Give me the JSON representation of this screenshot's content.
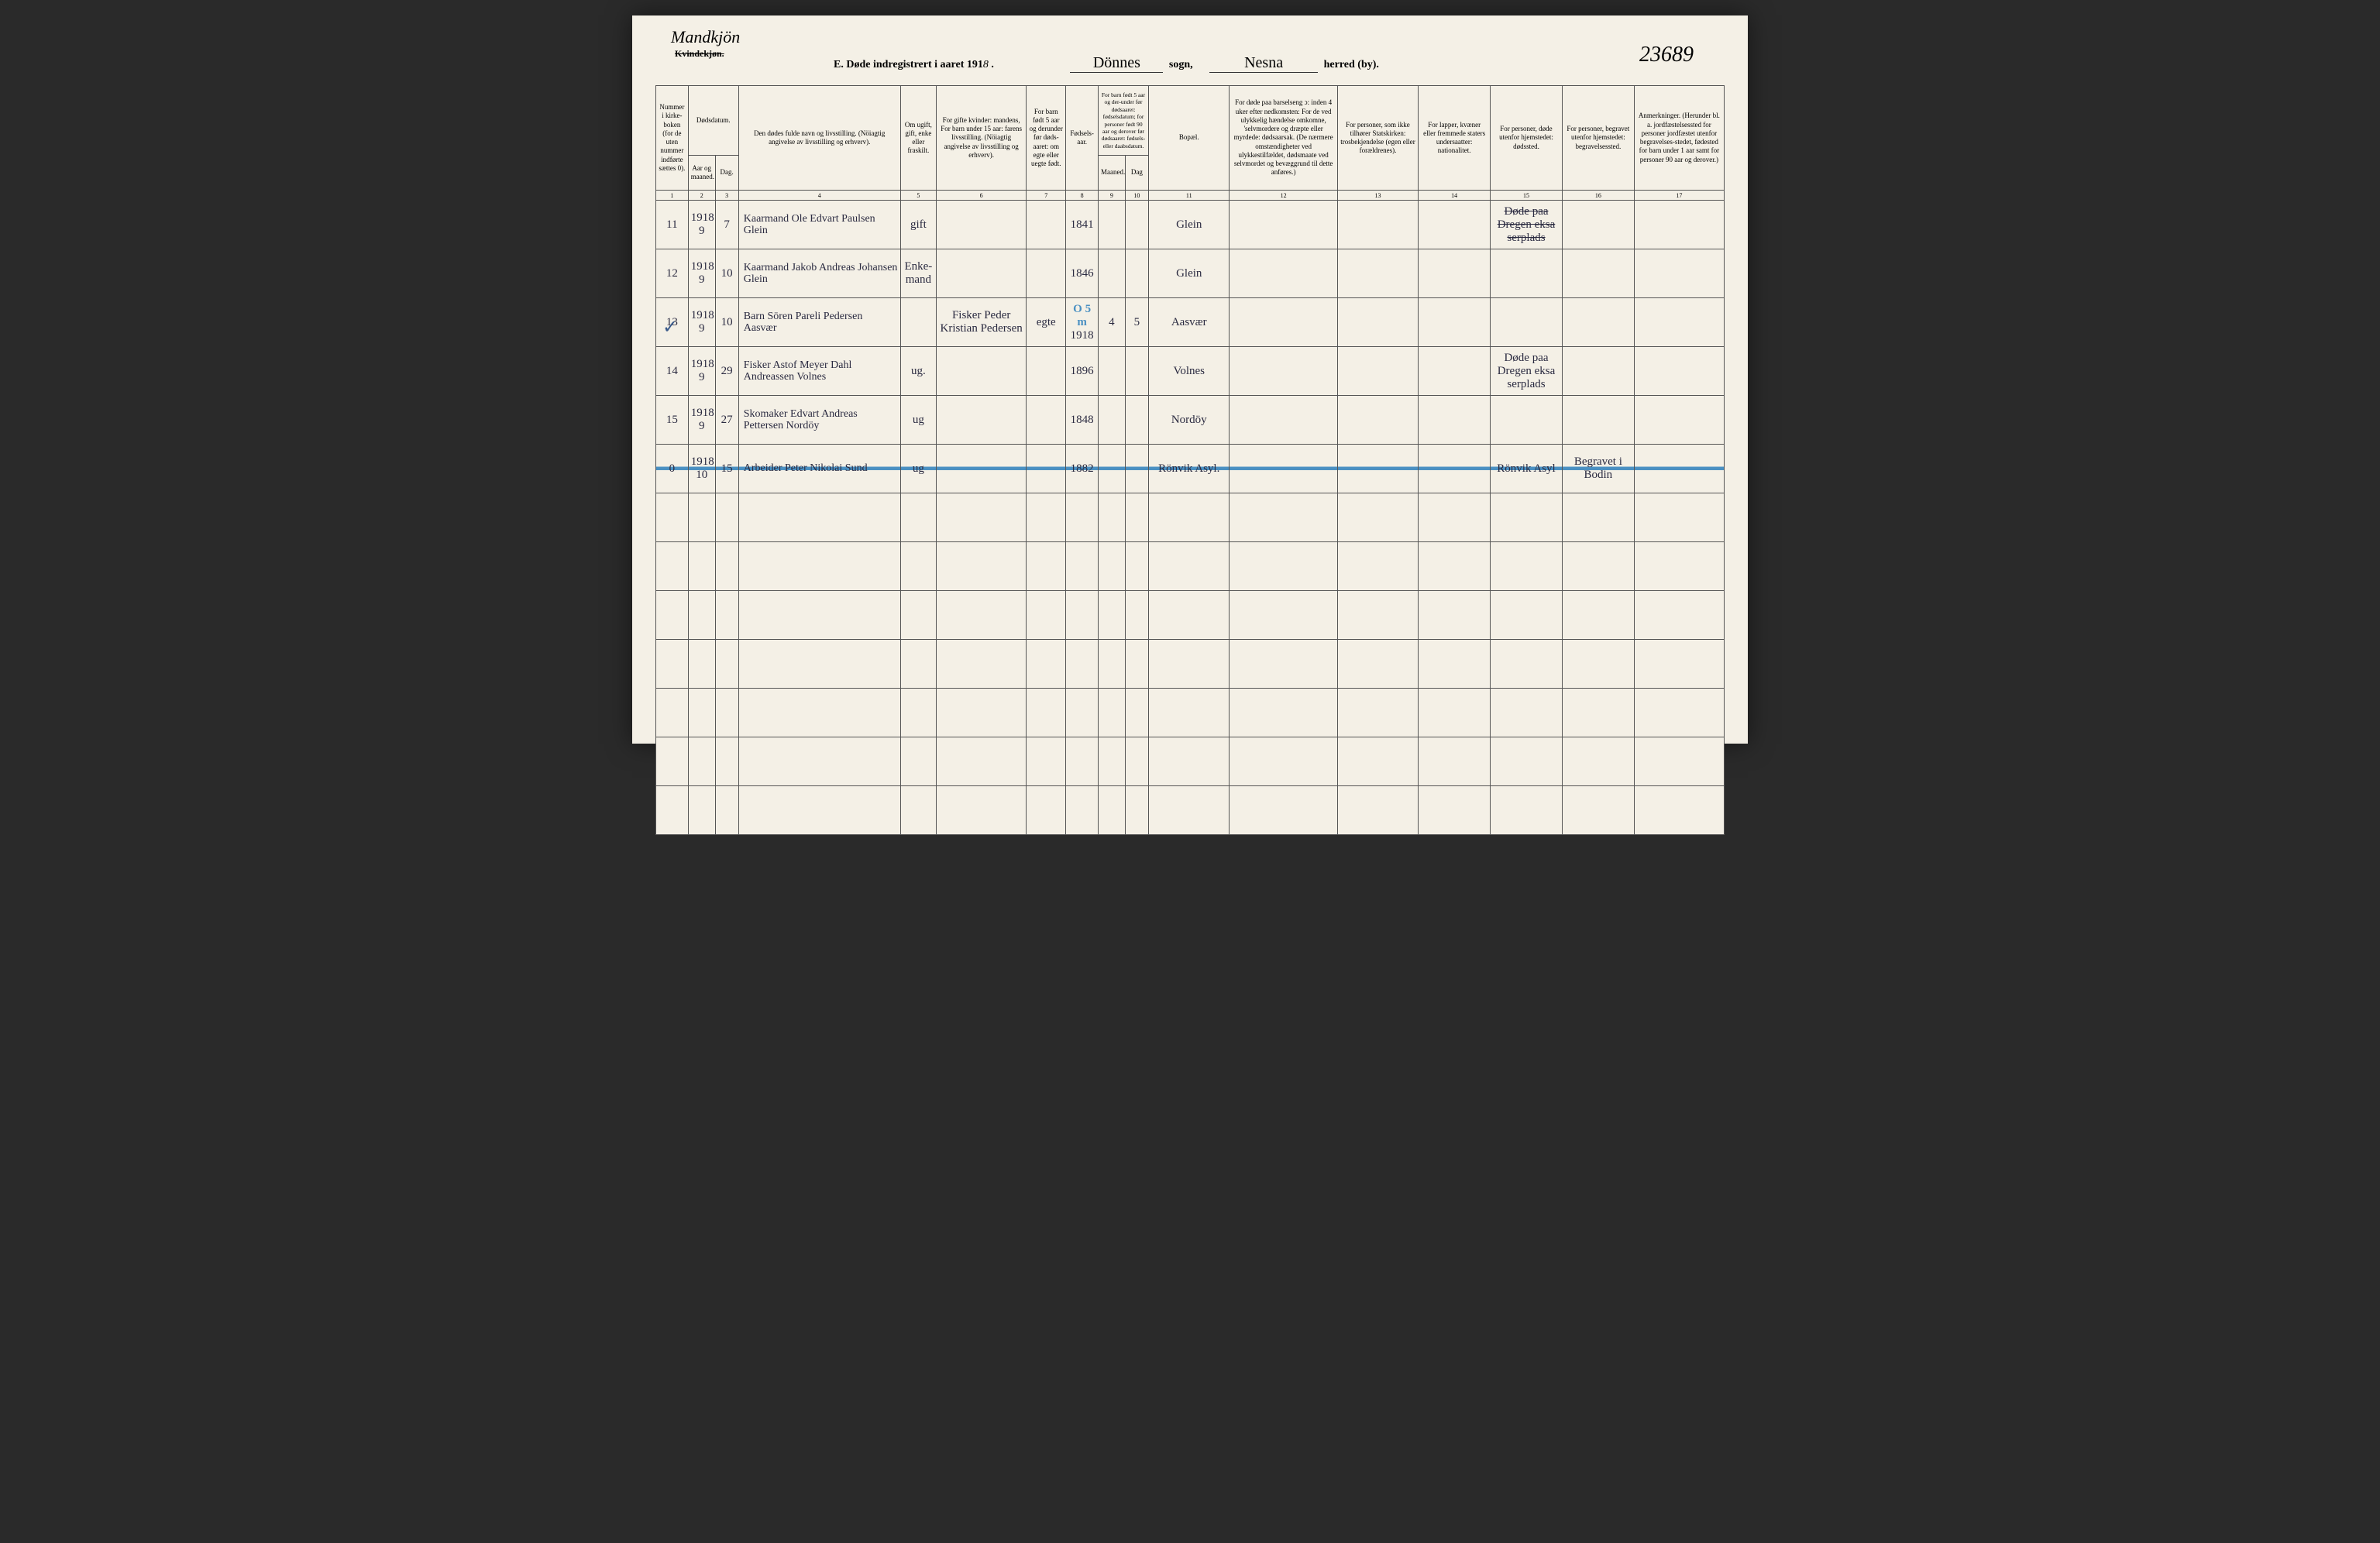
{
  "page": {
    "background_color": "#f4f0e6",
    "ink_color": "#2a2a40",
    "border_color": "#555555",
    "blue_pencil_color": "#4a90c2"
  },
  "header": {
    "corner_handwritten": "Mandkjön",
    "strikeout_printed": "Kvindekjøn.",
    "title_prefix": "E.  Døde indregistrert i aaret 191",
    "year_suffix": "8",
    "sogn_fill": "Dönnes",
    "sogn_label": "sogn,",
    "herred_fill": "Nesna",
    "herred_label": "herred (by).",
    "ref_number": "23689"
  },
  "columns": [
    {
      "num": "1",
      "label": "Nummer i kirke-boken (for de uten nummer indførte sættes 0).",
      "width": 36
    },
    {
      "num": "2",
      "label": "Aar og maaned.",
      "parent": "Dødsdatum.",
      "width": 30
    },
    {
      "num": "3",
      "label": "Dag.",
      "width": 26
    },
    {
      "num": "4",
      "label": "Den dødes fulde navn og livsstilling. (Nöiagtig angivelse av livsstilling og erhverv).",
      "width": 180
    },
    {
      "num": "5",
      "label": "Om ugift, gift, enke eller fraskilt.",
      "width": 40
    },
    {
      "num": "6",
      "label": "For gifte kvinder: mandens, For barn under 15 aar: farens livsstilling. (Nöiagtig angivelse av livsstilling og erhverv).",
      "width": 100
    },
    {
      "num": "7",
      "label": "For barn født 5 aar og derunder før døds-aaret: om egte eller uegte født.",
      "width": 44
    },
    {
      "num": "8",
      "label": "Fødsels-aar.",
      "width": 36
    },
    {
      "num": "9",
      "label": "Maaned.",
      "parent": "For barn født 5 aar og der-under før dødsaaret: fødselsdatum; for personer født 90 aar og derover før dødsaaret: fødsels- eller daabsdatum.",
      "width": 30
    },
    {
      "num": "10",
      "label": "Dag",
      "width": 26
    },
    {
      "num": "11",
      "label": "Bopæl.",
      "width": 90
    },
    {
      "num": "12",
      "label": "For døde paa barselseng ɔ: inden 4 uker efter nedkomsten: For de ved ulykkelig hændelse omkomne, 'selvmordere og dræpte eller myrdede: dødsaarsak. (De nærmere omstændigheter ved ulykkestilfældet, dødsmaate ved selvmordet og bevæggrund til dette anføres.)",
      "width": 120
    },
    {
      "num": "13",
      "label": "For personer, som ikke tilhører Statskirken: trosbekjendelse (egen eller forældrenes).",
      "width": 90
    },
    {
      "num": "14",
      "label": "For lapper, kvæner eller fremmede staters undersaatter: nationalitet.",
      "width": 80
    },
    {
      "num": "15",
      "label": "For personer, døde utenfor hjemstedet: dødssted.",
      "width": 80
    },
    {
      "num": "16",
      "label": "For personer, begravet utenfor hjemstedet: begravelsessted.",
      "width": 80
    },
    {
      "num": "17",
      "label": "Anmerkninger. (Herunder bl. a. jordfæstelsessted for personer jordfæstet utenfor begravelses-stedet, fødested for barn under 1 aar samt for personer 90 aar og derover.)",
      "width": 100
    }
  ],
  "rows": [
    {
      "num": "11",
      "year": "1918",
      "month": "9",
      "day": "7",
      "name": "Kaarmand Ole Edvart Paulsen Glein",
      "status": "gift",
      "parent_occ": "",
      "legit": "",
      "birth_year": "1841",
      "bm": "",
      "bd": "",
      "place": "Glein",
      "cause": "",
      "faith": "",
      "nation": "",
      "death_place": "Døde paa Dregen eksa serplads",
      "death_place_crossed": true,
      "burial": "",
      "remarks": ""
    },
    {
      "num": "12",
      "year": "1918",
      "month": "9",
      "day": "10",
      "name": "Kaarmand Jakob Andreas Johansen Glein",
      "status": "Enke-mand",
      "parent_occ": "",
      "legit": "",
      "birth_year": "1846",
      "bm": "",
      "bd": "",
      "place": "Glein",
      "cause": "",
      "faith": "",
      "nation": "",
      "death_place": "",
      "burial": "",
      "remarks": ""
    },
    {
      "num": "13",
      "year": "1918",
      "month": "9",
      "day": "10",
      "name": "Barn Sören Pareli Pedersen Aasvær",
      "status": "",
      "parent_occ": "Fisker Peder Kristian Pedersen",
      "legit": "egte",
      "birth_year": "1918",
      "bm": "4",
      "bd": "5",
      "place": "Aasvær",
      "cause": "",
      "faith": "",
      "nation": "",
      "death_place": "",
      "burial": "",
      "remarks": "",
      "blue_note": "O 5 m",
      "check": true
    },
    {
      "num": "14",
      "year": "1918",
      "month": "9",
      "day": "29",
      "name": "Fisker Astof Meyer Dahl Andreassen Volnes",
      "status": "ug.",
      "parent_occ": "",
      "legit": "",
      "birth_year": "1896",
      "bm": "",
      "bd": "",
      "place": "Volnes",
      "cause": "",
      "faith": "",
      "nation": "",
      "death_place": "Døde paa Dregen eksa serplads",
      "burial": "",
      "remarks": ""
    },
    {
      "num": "15",
      "year": "1918",
      "month": "9",
      "day": "27",
      "name": "Skomaker Edvart Andreas Pettersen Nordöy",
      "status": "ug",
      "parent_occ": "",
      "legit": "",
      "birth_year": "1848",
      "bm": "",
      "bd": "",
      "place": "Nordöy",
      "cause": "",
      "faith": "",
      "nation": "",
      "death_place": "",
      "burial": "",
      "remarks": ""
    },
    {
      "num": "0",
      "year": "1918",
      "month": "10",
      "day": "15",
      "name": "Arbeider Peter Nikolai Sund",
      "status": "ug",
      "parent_occ": "",
      "legit": "",
      "birth_year": "1882",
      "bm": "",
      "bd": "",
      "place": "Rönvik Asyl.",
      "cause": "",
      "faith": "",
      "nation": "",
      "death_place": "Rönvik Asyl",
      "burial": "Begravet i Bodin",
      "remarks": "",
      "blue_strike": true
    }
  ],
  "empty_rows": 7
}
